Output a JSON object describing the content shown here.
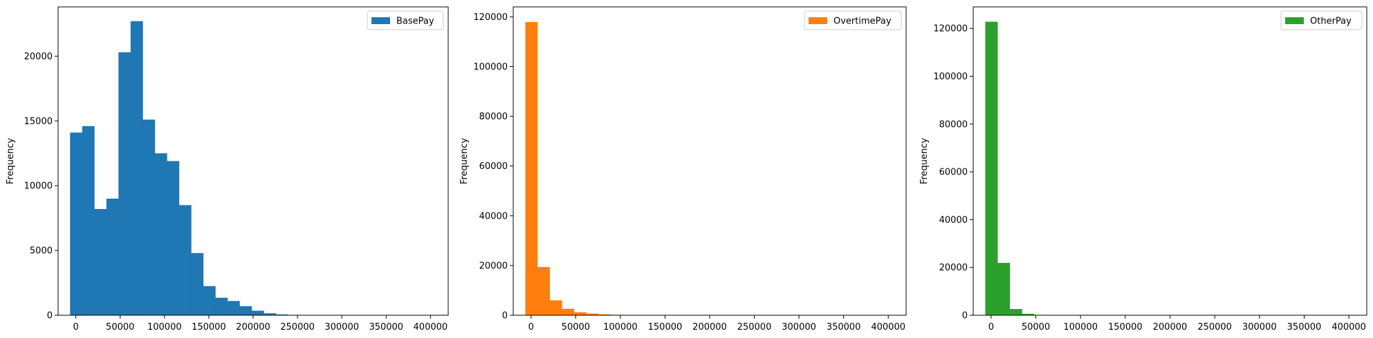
{
  "chart_data": [
    {
      "type": "bar",
      "chart_kind": "histogram",
      "title": "",
      "xlabel": "",
      "ylabel": "Frequency",
      "legend_position": "top-right",
      "grid": false,
      "color": "#1f77b4",
      "xlim": [
        -20000,
        420000
      ],
      "ylim": [
        0,
        23800
      ],
      "xticks": [
        0,
        50000,
        100000,
        150000,
        200000,
        250000,
        300000,
        350000,
        400000
      ],
      "yticks": [
        0,
        5000,
        10000,
        15000,
        20000
      ],
      "bin_start": -6500,
      "bin_width": 13650,
      "series": [
        {
          "name": "BasePay",
          "values": [
            14100,
            14600,
            8200,
            9000,
            20300,
            22700,
            15100,
            12500,
            11900,
            8500,
            4800,
            2250,
            1350,
            1100,
            700,
            350,
            150,
            60,
            25,
            10,
            5,
            3,
            2,
            1,
            1,
            0,
            0,
            0,
            0,
            0
          ]
        }
      ]
    },
    {
      "type": "bar",
      "chart_kind": "histogram",
      "title": "",
      "xlabel": "",
      "ylabel": "Frequency",
      "legend_position": "top-right",
      "grid": false,
      "color": "#ff7f0e",
      "xlim": [
        -20000,
        420000
      ],
      "ylim": [
        0,
        124000
      ],
      "xticks": [
        0,
        50000,
        100000,
        150000,
        200000,
        250000,
        300000,
        350000,
        400000
      ],
      "yticks": [
        0,
        20000,
        40000,
        60000,
        80000,
        100000,
        120000
      ],
      "bin_start": -6500,
      "bin_width": 13650,
      "series": [
        {
          "name": "OvertimePay",
          "values": [
            117900,
            19400,
            6000,
            2600,
            1200,
            650,
            350,
            180,
            100,
            50,
            25,
            12,
            6,
            3,
            2,
            1,
            1,
            0,
            0,
            0,
            0,
            0,
            0,
            0,
            0,
            0,
            0,
            0,
            0,
            0
          ]
        }
      ]
    },
    {
      "type": "bar",
      "chart_kind": "histogram",
      "title": "",
      "xlabel": "",
      "ylabel": "Frequency",
      "legend_position": "top-right",
      "grid": false,
      "color": "#2ca02c",
      "xlim": [
        -20000,
        420000
      ],
      "ylim": [
        0,
        129000
      ],
      "xticks": [
        0,
        50000,
        100000,
        150000,
        200000,
        250000,
        300000,
        350000,
        400000
      ],
      "yticks": [
        0,
        20000,
        40000,
        60000,
        80000,
        100000,
        120000
      ],
      "bin_start": -6500,
      "bin_width": 13650,
      "series": [
        {
          "name": "OtherPay",
          "values": [
            122800,
            21900,
            2600,
            600,
            150,
            50,
            20,
            8,
            4,
            2,
            1,
            1,
            0,
            0,
            0,
            0,
            0,
            0,
            0,
            0,
            0,
            0,
            0,
            0,
            0,
            0,
            0,
            0,
            0,
            0
          ]
        }
      ]
    }
  ]
}
